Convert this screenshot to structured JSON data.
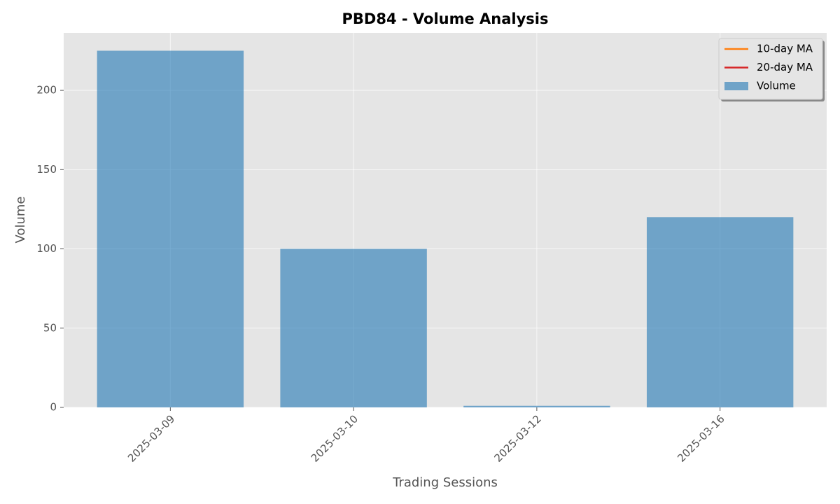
{
  "chart_data": {
    "type": "bar",
    "title": "PBD84 - Volume Analysis",
    "x_label": "Trading Sessions",
    "y_label": "Volume",
    "categories": [
      "2025-03-09",
      "2025-03-10",
      "2025-03-12",
      "2025-03-16"
    ],
    "series": [
      {
        "name": "10-day MA",
        "type": "line",
        "color": "#ff7f0e",
        "values": [
          null,
          null,
          null,
          null
        ]
      },
      {
        "name": "20-day MA",
        "type": "line",
        "color": "#d62728",
        "values": [
          null,
          null,
          null,
          null
        ]
      },
      {
        "name": "Volume",
        "type": "bar",
        "color": "#1f77b4",
        "values": [
          225,
          100,
          1,
          120
        ]
      }
    ],
    "ylim": [
      0,
      236.25
    ],
    "yticks": [
      0,
      50,
      100,
      150,
      200
    ],
    "grid": true,
    "legend": "upper right"
  }
}
